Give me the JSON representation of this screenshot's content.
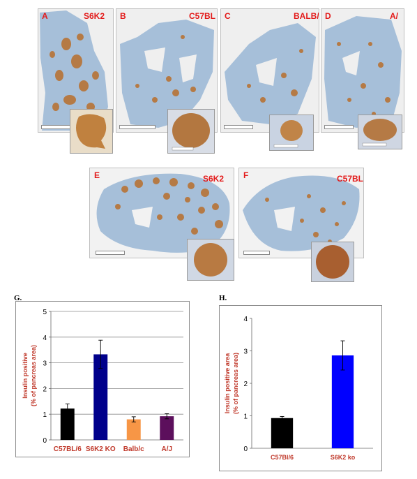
{
  "panels": [
    {
      "letter": "A",
      "label": "S6K2"
    },
    {
      "letter": "B",
      "label": "C57BL"
    },
    {
      "letter": "C",
      "label": "BALB/"
    },
    {
      "letter": "D",
      "label": "A/"
    },
    {
      "letter": "E",
      "label": "S6K2"
    },
    {
      "letter": "F",
      "label": "C57BL"
    }
  ],
  "colors": {
    "tissue": "#a6bfd9",
    "islet": "#b57a45",
    "inset_islet": "#c0813f",
    "label_red": "#e31b1b",
    "axis_label": "#c0392b"
  },
  "chart_g": {
    "letter": "G.",
    "chart_data": {
      "type": "bar",
      "categories": [
        "C57BL/6",
        "S6K2 KO",
        "Balb/c",
        "A/J"
      ],
      "values": [
        1.22,
        3.33,
        0.8,
        0.92
      ],
      "errors": [
        0.18,
        0.55,
        0.1,
        0.1
      ],
      "colors": [
        "#000000",
        "#00008b",
        "#f79646",
        "#5c0f5c"
      ],
      "ylabel_line1": "Insulin positive",
      "ylabel_line2": "(% of pancreas area)",
      "ylim": [
        0,
        5
      ],
      "yticks": [
        "0",
        "1",
        "2",
        "3",
        "4",
        "5"
      ],
      "grid": true
    }
  },
  "chart_h": {
    "letter": "H.",
    "chart_data": {
      "type": "bar",
      "categories": [
        "C57Bl/6",
        "S6K2 ko"
      ],
      "values": [
        0.93,
        2.86
      ],
      "errors": [
        0.05,
        0.45
      ],
      "colors": [
        "#000000",
        "#0000ff"
      ],
      "ylabel_line1": "Insulin positive area",
      "ylabel_line2": "(% of pancreas area)",
      "ylim": [
        0,
        4
      ],
      "yticks": [
        "0",
        "1",
        "2",
        "3",
        "4"
      ],
      "grid": false
    }
  }
}
